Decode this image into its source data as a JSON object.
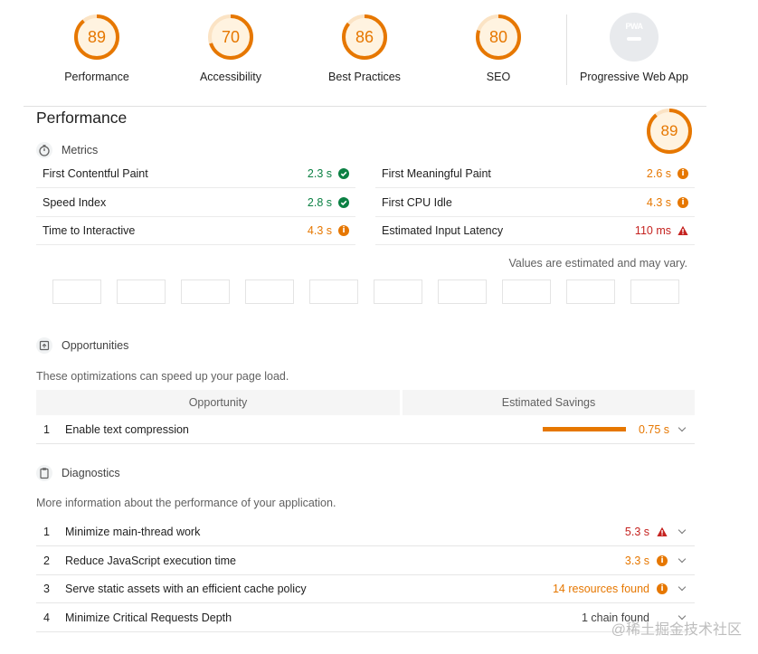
{
  "scores": [
    {
      "value": "89",
      "label": "Performance",
      "color": "#e67700",
      "fraction": 0.89
    },
    {
      "value": "70",
      "label": "Accessibility",
      "color": "#e67700",
      "fraction": 0.7
    },
    {
      "value": "86",
      "label": "Best Practices",
      "color": "#e67700",
      "fraction": 0.86
    },
    {
      "value": "80",
      "label": "SEO",
      "color": "#e67700",
      "fraction": 0.8
    }
  ],
  "pwa": {
    "badge_text": "PWA",
    "label": "Progressive Web App"
  },
  "performance": {
    "title": "Performance",
    "score": "89",
    "score_fraction": 0.89,
    "metrics_heading": "Metrics",
    "metrics": [
      {
        "name": "First Contentful Paint",
        "value": "2.3 s",
        "status": "pass"
      },
      {
        "name": "First Meaningful Paint",
        "value": "2.6 s",
        "status": "average"
      },
      {
        "name": "Speed Index",
        "value": "2.8 s",
        "status": "pass"
      },
      {
        "name": "First CPU Idle",
        "value": "4.3 s",
        "status": "average"
      },
      {
        "name": "Time to Interactive",
        "value": "4.3 s",
        "status": "average"
      },
      {
        "name": "Estimated Input Latency",
        "value": "110 ms",
        "status": "fail"
      }
    ],
    "values_note": "Values are estimated and may vary.",
    "filmstrip_count": 10
  },
  "opportunities": {
    "heading": "Opportunities",
    "description": "These optimizations can speed up your page load.",
    "col_opportunity": "Opportunity",
    "col_savings": "Estimated Savings",
    "items": [
      {
        "index": "1",
        "title": "Enable text compression",
        "value": "0.75 s"
      }
    ]
  },
  "diagnostics": {
    "heading": "Diagnostics",
    "description": "More information about the performance of your application.",
    "items": [
      {
        "index": "1",
        "title": "Minimize main-thread work",
        "value": "5.3 s",
        "status": "fail"
      },
      {
        "index": "2",
        "title": "Reduce JavaScript execution time",
        "value": "3.3 s",
        "status": "average"
      },
      {
        "index": "3",
        "title": "Serve static assets with an efficient cache policy",
        "value": "14 resources found",
        "status": "average"
      },
      {
        "index": "4",
        "title": "Minimize Critical Requests Depth",
        "value": "1 chain found",
        "status": "info"
      }
    ]
  },
  "watermark": "@稀土掘金技术社区"
}
